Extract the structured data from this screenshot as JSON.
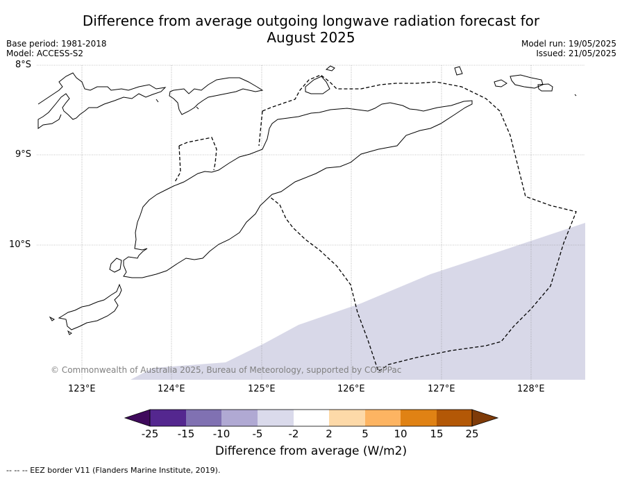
{
  "title_line1": "Difference from average outgoing longwave radiation forecast for",
  "title_line2": "August 2025",
  "base_period": "Base period: 1981-2018",
  "model": "Model: ACCESS-S2",
  "model_run": "Model run: 19/05/2025",
  "issued": "Issued: 21/05/2025",
  "lat_labels": [
    "8°S",
    "9°S",
    "10°S"
  ],
  "lon_labels": [
    "123°E",
    "124°E",
    "125°E",
    "126°E",
    "127°E",
    "128°E"
  ],
  "copyright": "© Commonwealth of Australia 2025, Bureau of Meteorology, supported by COSPPac",
  "colorbar": {
    "ticks": [
      "-25",
      "-15",
      "-10",
      "-5",
      "-2",
      "2",
      "5",
      "10",
      "15",
      "25"
    ],
    "colors": [
      "#3f0a5c",
      "#54278f",
      "#8071b2",
      "#b0a9d3",
      "#dadaeb",
      "#ffffff",
      "#fdd9a8",
      "#fdb462",
      "#e08214",
      "#b35806",
      "#7f3b08"
    ],
    "label": "Difference from average (W/m2)"
  },
  "footnote": "--  --  -- EEZ border V11 (Flanders Marine Institute, 2019)."
}
